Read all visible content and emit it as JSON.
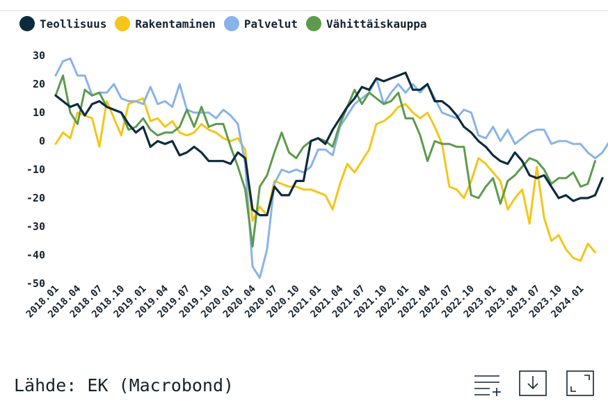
{
  "chart_data": {
    "type": "line",
    "title": "",
    "xlabel": "",
    "ylabel": "",
    "ylim": [
      -50,
      30
    ],
    "yticks": [
      30,
      20,
      10,
      0,
      -10,
      -20,
      -30,
      -40,
      -50
    ],
    "grid": false,
    "legend_position": "top-left",
    "x_start": "2018.01",
    "x_tick_labels": [
      "2018.01",
      "2018.04",
      "2018.07",
      "2018.10",
      "2019.01",
      "2019.04",
      "2019.07",
      "2019.10",
      "2020.01",
      "2020.04",
      "2020.07",
      "2020.10",
      "2021.01",
      "2021.04",
      "2021.07",
      "2021.10",
      "2022.01",
      "2022.04",
      "2022.07",
      "2022.10",
      "2023.01",
      "2023.04",
      "2023.07",
      "2023.10",
      "2024.01"
    ],
    "series": [
      {
        "name": "Teollisuus",
        "color": "#0d2b3e",
        "values": [
          16,
          14,
          12,
          13,
          9,
          13,
          14,
          12,
          11,
          10,
          6,
          3,
          5,
          -2,
          0,
          -1,
          0,
          -5,
          -4,
          -2,
          -4,
          -7,
          -7,
          -7,
          -8,
          -4,
          -6,
          -24,
          -26,
          -26,
          -16,
          -19,
          -19,
          -14,
          -14,
          0,
          1,
          -1,
          4,
          8,
          12,
          15,
          19,
          18,
          22,
          21,
          22,
          23,
          24,
          18,
          18,
          20,
          14,
          14,
          12,
          9,
          5,
          3,
          0,
          -2,
          -5,
          -7,
          -8,
          -4,
          -7,
          -12,
          -13,
          -12,
          -16,
          -20,
          -19,
          -21,
          -20,
          -20,
          -19,
          -13
        ]
      },
      {
        "name": "Rakentaminen",
        "color": "#f5c518",
        "values": [
          -1,
          3,
          1,
          10,
          9,
          8,
          -2,
          14,
          8,
          2,
          13,
          14,
          15,
          7,
          8,
          5,
          7,
          3,
          2,
          3,
          6,
          4,
          3,
          1,
          0,
          1,
          -3,
          -28,
          -23,
          -26,
          -14,
          -15,
          -16,
          -16,
          -17,
          -17,
          -18,
          -19,
          -24,
          -15,
          -8,
          -11,
          -7,
          -3,
          6,
          7,
          9,
          12,
          13,
          10,
          8,
          10,
          5,
          -1,
          -16,
          -17,
          -20,
          -14,
          -6,
          -8,
          -11,
          -14,
          -24,
          -20,
          -17,
          -29,
          -9,
          -27,
          -35,
          -33,
          -38,
          -41,
          -42,
          -36,
          -39
        ]
      },
      {
        "name": "Palvelut",
        "color": "#89b3e8",
        "values": [
          23,
          28,
          29,
          23,
          23,
          16,
          17,
          17,
          20,
          15,
          14,
          14,
          13,
          19,
          13,
          14,
          12,
          20,
          11,
          10,
          10,
          10,
          8,
          11,
          9,
          6,
          -8,
          -44,
          -48,
          -38,
          -15,
          -10,
          -11,
          -10,
          -11,
          -9,
          -3,
          -3,
          -5,
          5,
          9,
          13,
          15,
          17,
          22,
          13,
          17,
          20,
          17,
          20,
          17,
          20,
          15,
          10,
          9,
          8,
          11,
          10,
          2,
          1,
          5,
          0,
          4,
          -1,
          1,
          3,
          4,
          4,
          -1,
          0,
          0,
          -1,
          -1,
          -4,
          -6,
          -4,
          0,
          1
        ]
      },
      {
        "name": "Vähittäiskauppa",
        "color": "#5c9b4c",
        "values": [
          16,
          23,
          10,
          6,
          18,
          16,
          17,
          12,
          11,
          10,
          4,
          5,
          8,
          4,
          2,
          3,
          3,
          5,
          11,
          5,
          12,
          5,
          6,
          6,
          -2,
          -9,
          -17,
          -37,
          -16,
          -12,
          -4,
          3,
          -4,
          -6,
          -2,
          0,
          1,
          0,
          -2,
          6,
          12,
          18,
          13,
          17,
          15,
          13,
          14,
          17,
          8,
          8,
          2,
          -7,
          0,
          -1,
          -1,
          -2,
          -2,
          -19,
          -20,
          -16,
          -13,
          -22,
          -14,
          -12,
          -9,
          -6,
          -7,
          -10,
          -15,
          -13,
          -13,
          -11,
          -16,
          -15,
          -7
        ]
      }
    ]
  },
  "source_text": "Lähde: EK (Macrobond)",
  "toolbar": {
    "items": [
      {
        "icon": "list-add-icon"
      },
      {
        "icon": "download-icon"
      },
      {
        "icon": "fullscreen-icon"
      }
    ]
  }
}
